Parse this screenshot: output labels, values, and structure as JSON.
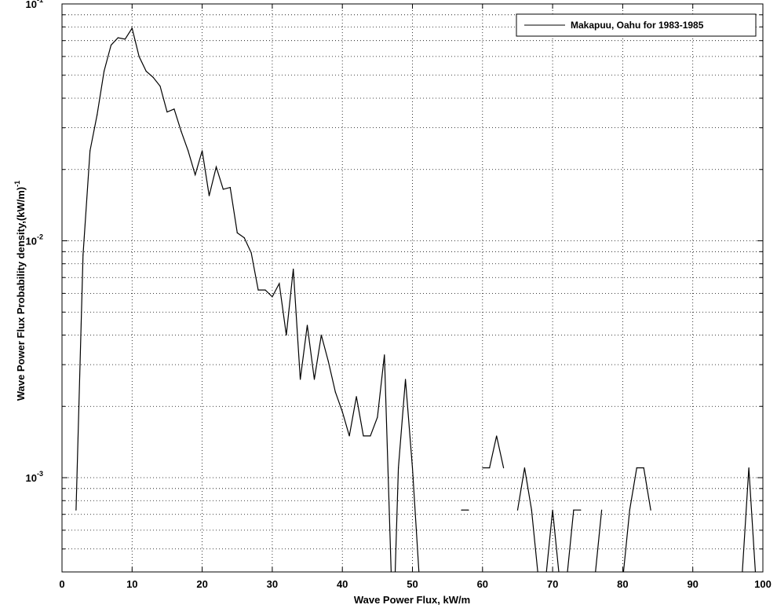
{
  "chart_data": {
    "type": "line",
    "xlabel": "Wave Power Flux, kW/m",
    "ylabel": "Wave Power Flux Probability density,(kW/m)",
    "ylabel_exponent": "-1",
    "xlim": [
      0,
      100
    ],
    "ylim": [
      0.0004,
      0.1
    ],
    "yscale": "log",
    "grid": true,
    "legend_position": "top-right",
    "x_ticks": [
      "0",
      "10",
      "20",
      "30",
      "40",
      "50",
      "60",
      "70",
      "80",
      "90",
      "100"
    ],
    "y_ticks": [
      {
        "base": "10",
        "exp": "-1",
        "value": 0.1
      },
      {
        "base": "10",
        "exp": "-2",
        "value": 0.01
      },
      {
        "base": "10",
        "exp": "-3",
        "value": 0.001
      }
    ],
    "series": [
      {
        "name": "Makapuu, Oahu for 1983-1985",
        "color": "#000000",
        "segments": [
          {
            "x": [
              2,
              3,
              4,
              5,
              6,
              7,
              8,
              9,
              10,
              11,
              12,
              13,
              14,
              15,
              16,
              17,
              18,
              19,
              20,
              21,
              22,
              23,
              24,
              25,
              26,
              27,
              28,
              29,
              30,
              31,
              32,
              33,
              34,
              35,
              36,
              37,
              38,
              39,
              40,
              41,
              42,
              43,
              44,
              45,
              46,
              47
            ],
            "y": [
              0.00073,
              0.0087,
              0.024,
              0.034,
              0.052,
              0.067,
              0.072,
              0.071,
              0.079,
              0.06,
              0.052,
              0.049,
              0.045,
              0.035,
              0.036,
              0.029,
              0.024,
              0.019,
              0.024,
              0.0155,
              0.0205,
              0.0165,
              0.0168,
              0.0108,
              0.0103,
              0.0089,
              0.0062,
              0.0062,
              0.0058,
              0.0066,
              0.004,
              0.0076,
              0.0026,
              0.0044,
              0.0026,
              0.004,
              0.0031,
              0.0023,
              0.0019,
              0.0015,
              0.0022,
              0.0015,
              0.0015,
              0.0018,
              0.0033,
              0.00037
            ]
          },
          {
            "x": [
              47.5,
              48,
              49,
              50,
              51
            ],
            "y": [
              0.00037,
              0.0011,
              0.0026,
              0.0011,
              0.00037
            ]
          },
          {
            "x": [
              57,
              58
            ],
            "y": [
              0.00073,
              0.00073
            ]
          },
          {
            "x": [
              60,
              61,
              62,
              63
            ],
            "y": [
              0.0011,
              0.0011,
              0.0015,
              0.0011
            ]
          },
          {
            "x": [
              65,
              66,
              67,
              68,
              69,
              70,
              71,
              72,
              73,
              74
            ],
            "y": [
              0.00073,
              0.0011,
              0.00073,
              0.00037,
              0.00037,
              0.00073,
              0.00037,
              0.00037,
              0.00073,
              0.00073
            ]
          },
          {
            "x": [
              76,
              77
            ],
            "y": [
              0.00037,
              0.00073
            ]
          },
          {
            "x": [
              80,
              81,
              82,
              83,
              84
            ],
            "y": [
              0.00037,
              0.00073,
              0.0011,
              0.0011,
              0.00073
            ]
          },
          {
            "x": [
              97,
              98,
              99
            ],
            "y": [
              0.00037,
              0.0011,
              0.00037
            ]
          }
        ]
      }
    ]
  }
}
